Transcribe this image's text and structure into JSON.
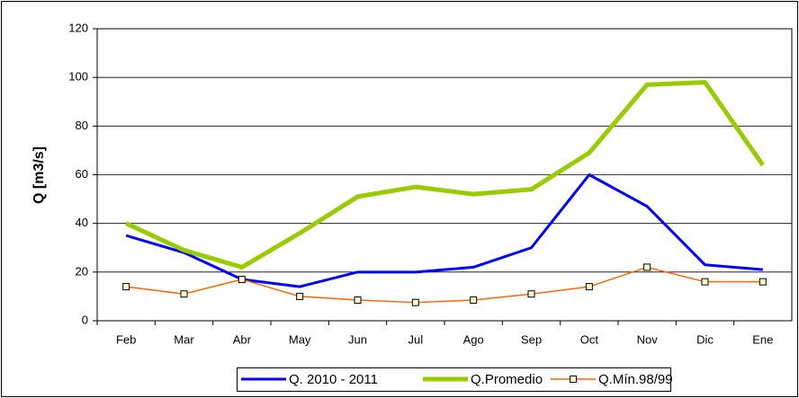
{
  "chart_data": {
    "type": "line",
    "y_label": "Q [m3/s]",
    "categories": [
      "Feb",
      "Mar",
      "Abr",
      "May",
      "Jun",
      "Jul",
      "Ago",
      "Sep",
      "Oct",
      "Nov",
      "Dic",
      "Ene"
    ],
    "series": [
      {
        "name": "Q. 2010 - 2011",
        "color": "#0000ff",
        "values": [
          35,
          28,
          17,
          14,
          20,
          20,
          22,
          30,
          60,
          47,
          23,
          21
        ]
      },
      {
        "name": "Q.Promedio",
        "color": "#99cc00",
        "values": [
          40,
          29,
          22,
          36,
          51,
          55,
          52,
          54,
          69,
          97,
          98,
          64
        ]
      },
      {
        "name": "Q.Mín.98/99",
        "color": "#ff6600",
        "marker": "square",
        "values": [
          14,
          11,
          17,
          10,
          8.5,
          7.5,
          8.5,
          11,
          14,
          22,
          16,
          16
        ]
      }
    ],
    "ylim": [
      0,
      120
    ],
    "yticks": [
      0,
      20,
      40,
      60,
      80,
      100,
      120
    ],
    "grid": true,
    "legend": "bottom"
  }
}
